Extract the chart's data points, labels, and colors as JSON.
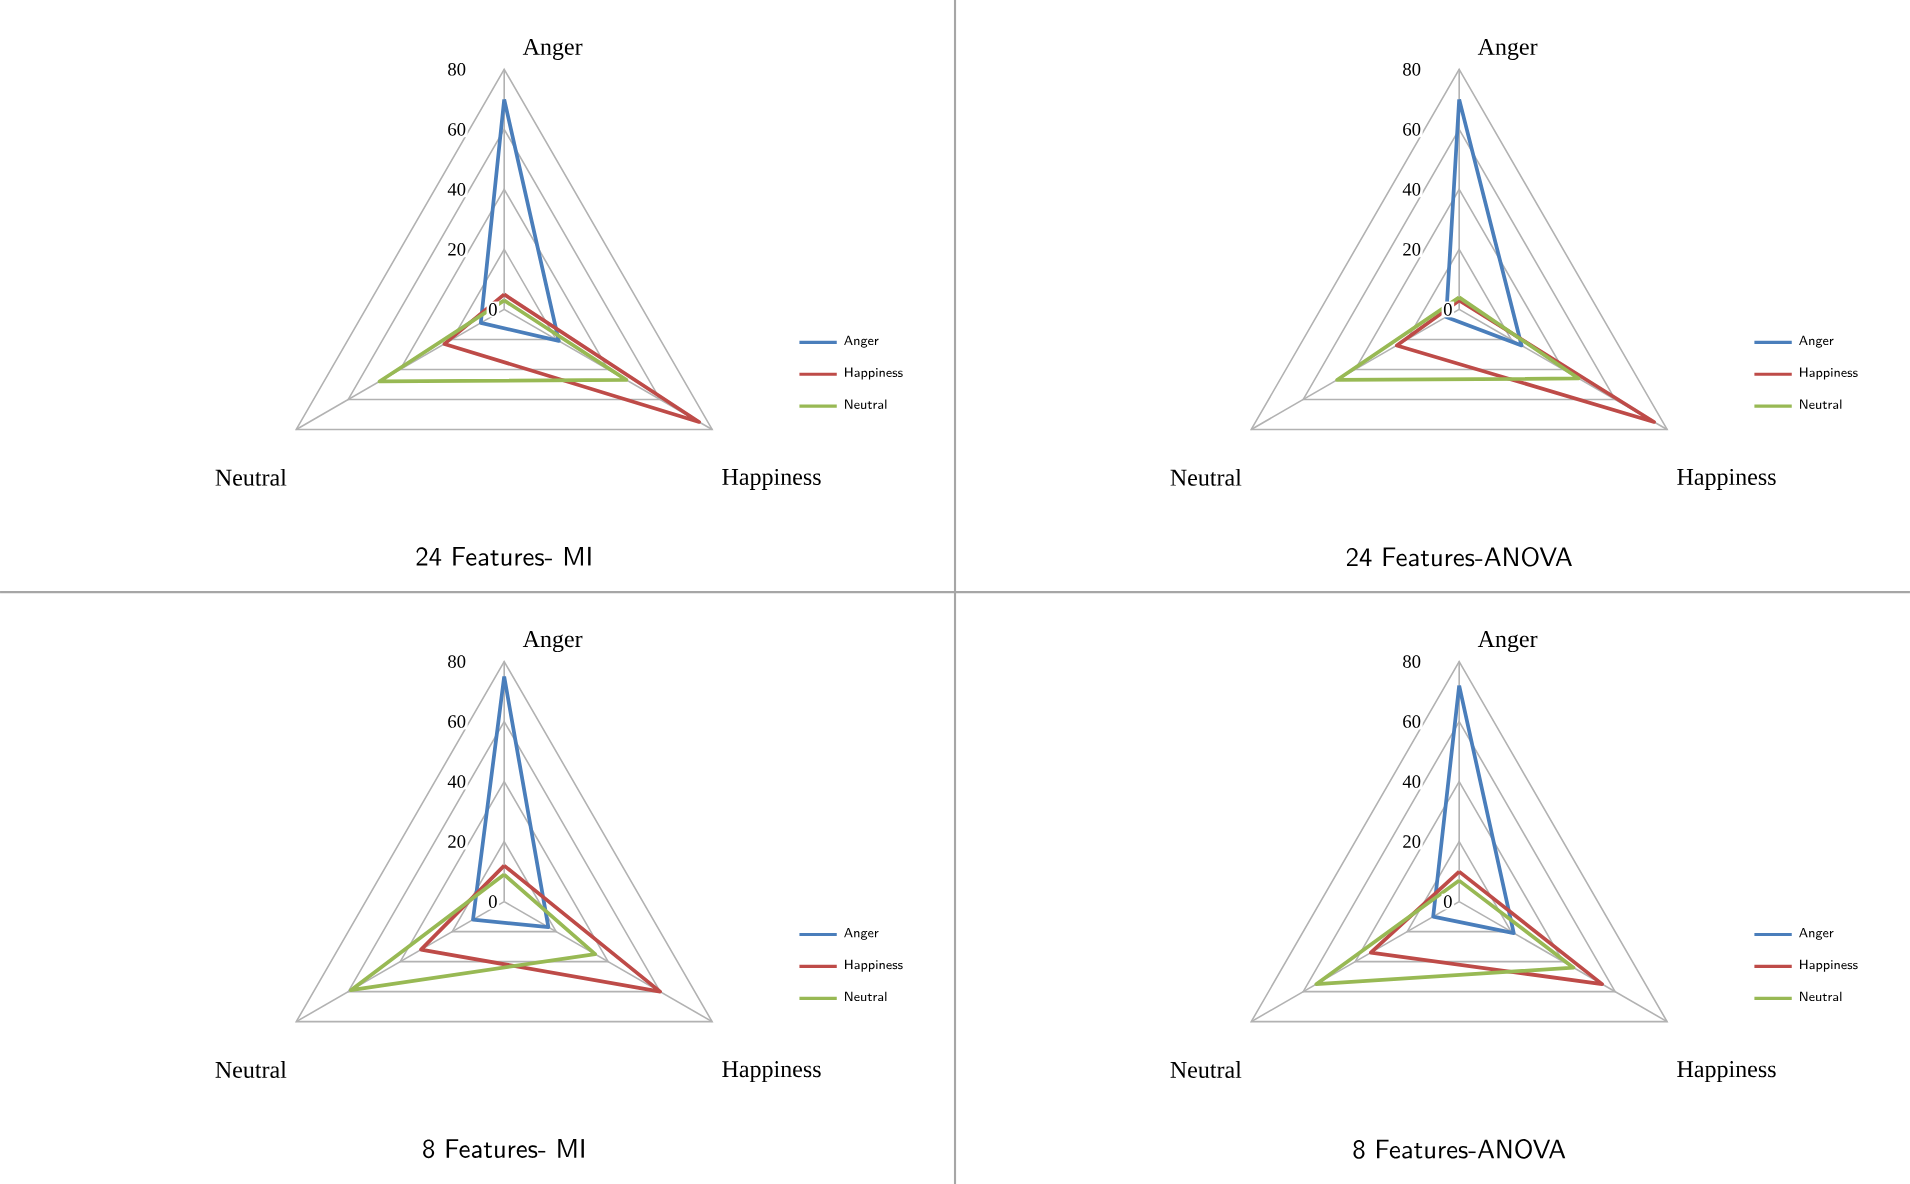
{
  "chart_data": [
    {
      "type": "radar",
      "title": "24 Features- MI",
      "categories": [
        "Anger",
        "Happiness",
        "Neutral"
      ],
      "ylim": [
        0,
        80
      ],
      "yticks": [
        0,
        20,
        40,
        60,
        80
      ],
      "grid": true,
      "legend": "right",
      "series": [
        {
          "name": "Anger",
          "color": "#4a7ebb",
          "values": [
            70,
            21,
            9
          ]
        },
        {
          "name": "Happiness",
          "color": "#be4b48",
          "values": [
            5,
            75,
            23
          ]
        },
        {
          "name": "Neutral",
          "color": "#98b954",
          "values": [
            3,
            47,
            48
          ]
        }
      ]
    },
    {
      "type": "radar",
      "title": "24 Features-ANOVA",
      "categories": [
        "Anger",
        "Happiness",
        "Neutral"
      ],
      "ylim": [
        0,
        80
      ],
      "yticks": [
        0,
        20,
        40,
        60,
        80
      ],
      "grid": true,
      "legend": "right",
      "series": [
        {
          "name": "Anger",
          "color": "#4a7ebb",
          "values": [
            70,
            24,
            5
          ]
        },
        {
          "name": "Happiness",
          "color": "#be4b48",
          "values": [
            3,
            75,
            24
          ]
        },
        {
          "name": "Neutral",
          "color": "#98b954",
          "values": [
            4,
            46,
            47
          ]
        }
      ]
    },
    {
      "type": "radar",
      "title": "8 Features- MI",
      "categories": [
        "Anger",
        "Happiness",
        "Neutral"
      ],
      "ylim": [
        0,
        80
      ],
      "yticks": [
        0,
        20,
        40,
        60,
        80
      ],
      "grid": true,
      "legend": "right",
      "series": [
        {
          "name": "Anger",
          "color": "#4a7ebb",
          "values": [
            75,
            17,
            12
          ]
        },
        {
          "name": "Happiness",
          "color": "#be4b48",
          "values": [
            12,
            60,
            32
          ]
        },
        {
          "name": "Neutral",
          "color": "#98b954",
          "values": [
            9,
            35,
            59
          ]
        }
      ]
    },
    {
      "type": "radar",
      "title": "8 Features-ANOVA",
      "categories": [
        "Anger",
        "Happiness",
        "Neutral"
      ],
      "ylim": [
        0,
        80
      ],
      "yticks": [
        0,
        20,
        40,
        60,
        80
      ],
      "grid": true,
      "legend": "right",
      "series": [
        {
          "name": "Anger",
          "color": "#4a7ebb",
          "values": [
            72,
            21,
            10
          ]
        },
        {
          "name": "Happiness",
          "color": "#be4b48",
          "values": [
            10,
            55,
            34
          ]
        },
        {
          "name": "Neutral",
          "color": "#98b954",
          "values": [
            7,
            44,
            55
          ]
        }
      ]
    }
  ]
}
